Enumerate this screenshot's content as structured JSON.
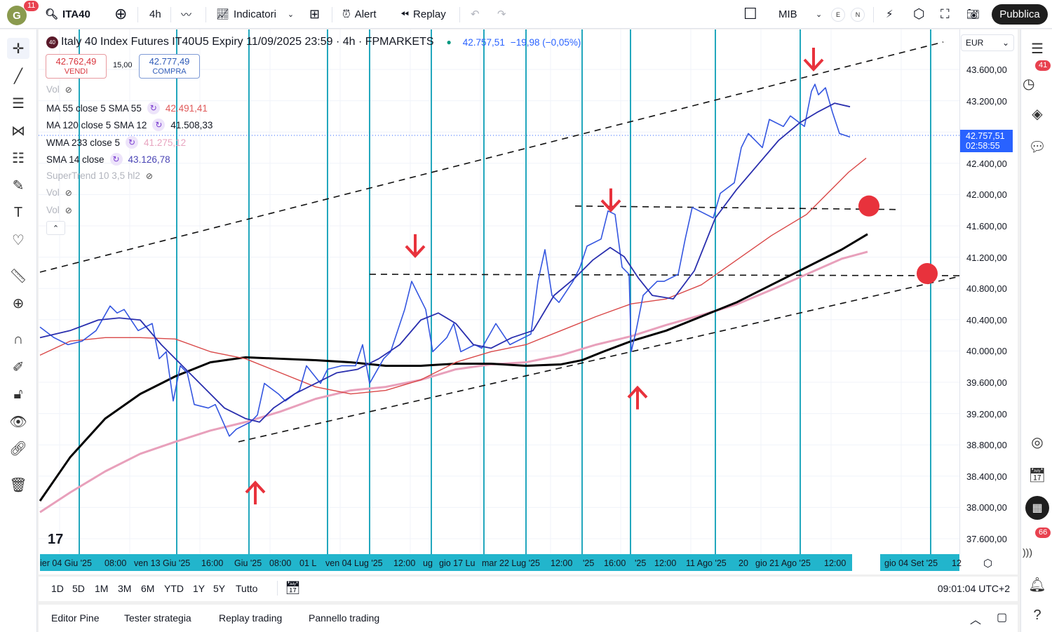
{
  "topbar": {
    "avatar_letter": "G",
    "avatar_badge": "11",
    "symbol": "ITA40",
    "interval": "4h",
    "indicators": "Indicatori",
    "alert": "Alert",
    "replay": "Replay",
    "layout_name": "MIB",
    "e": "E",
    "n": "N",
    "publish": "Pubblica"
  },
  "legend": {
    "symbol_badge": "40",
    "title": "Italy 40 Index Futures IT40U5 Expiry 11/09/2025 23:59 · 4h · FPMARKETS",
    "last": "42.757,51",
    "change": "−19,98 (−0,05%)",
    "sell_price": "42.762,49",
    "sell_label": "VENDI",
    "spread": "15,00",
    "buy_price": "42.777,49",
    "buy_label": "COMPRA",
    "rows": [
      {
        "name": "Vol",
        "value": "",
        "color": "#b2b5be",
        "hidden": true
      },
      {
        "name": "MA 55 close 5 SMA 55",
        "value": "42.491,41",
        "color": "#e05a5a"
      },
      {
        "name": "MA 120 close 5 SMA 12",
        "value": "41.508,33",
        "color": "#131722"
      },
      {
        "name": "WMA 233 close 5",
        "value": "41.275,12",
        "color": "#e8a5c0"
      },
      {
        "name": "SMA 14 close",
        "value": "43.126,78",
        "color": "#3a3fb0"
      },
      {
        "name": "SuperTrend 10 3,5 hl2",
        "value": "",
        "color": "#b2b5be",
        "hidden": true
      },
      {
        "name": "Vol",
        "value": "",
        "color": "#b2b5be",
        "hidden": true
      },
      {
        "name": "Vol",
        "value": "",
        "color": "#b2b5be",
        "hidden": true
      }
    ]
  },
  "price_axis": {
    "currency": "EUR",
    "labels": [
      "43.600,00",
      "43.200,00",
      "42.400,00",
      "42.000,00",
      "41.600,00",
      "41.200,00",
      "40.800,00",
      "40.400,00",
      "40.000,00",
      "39.600,00",
      "39.200,00",
      "38.800,00",
      "38.400,00",
      "38.000,00",
      "37.600,00"
    ],
    "current_price": "42.757,51",
    "countdown": "02:58:55"
  },
  "time_axis": {
    "labels": [
      "ier 04 Giu '25",
      "08:00",
      "ven 13 Giu '25",
      "16:00",
      "Giu '25",
      "08:00",
      "01 L",
      "ven 04 Lug '25",
      "12:00",
      "ug",
      "gio 17 Lu",
      "mar 22 Lug '25",
      "12:00",
      "'25",
      "16:00",
      "'25",
      "12:00",
      "11 Ago '25",
      "20",
      "gio 21 Ago '25",
      "12:00",
      "gio 04 Set '25",
      "12"
    ]
  },
  "range_bar": {
    "ranges": [
      "1D",
      "5D",
      "1M",
      "3M",
      "6M",
      "YTD",
      "1Y",
      "5Y",
      "Tutto"
    ],
    "clock": "09:01:04 UTC+2"
  },
  "bottom_panel": {
    "tabs": [
      "Editor Pine",
      "Tester strategia",
      "Replay trading",
      "Pannello trading"
    ]
  },
  "right_sidebar": {
    "alerts_badge": "41",
    "news_badge": "66"
  },
  "chart_data": {
    "type": "line",
    "x_unit": "bar index (4h)",
    "ylim": [
      37600,
      43600
    ],
    "y_ticks": [
      43600,
      43200,
      42800,
      42400,
      42000,
      41600,
      41200,
      40800,
      40400,
      40000,
      39600,
      39200,
      38800,
      38400,
      38000,
      37600
    ],
    "series": [
      {
        "name": "Price",
        "color": "#3456e0",
        "width": 1.6,
        "points": [
          [
            0,
            40306
          ],
          [
            2,
            40171
          ],
          [
            4,
            40081
          ],
          [
            6,
            40126
          ],
          [
            8,
            40261
          ],
          [
            10,
            40576
          ],
          [
            11,
            40486
          ],
          [
            12,
            40531
          ],
          [
            14,
            40261
          ],
          [
            16,
            40351
          ],
          [
            17,
            39901
          ],
          [
            18,
            39991
          ],
          [
            19,
            39361
          ],
          [
            20,
            39811
          ],
          [
            21,
            39721
          ],
          [
            22,
            39316
          ],
          [
            24,
            39271
          ],
          [
            25,
            39316
          ],
          [
            27,
            38911
          ],
          [
            28,
            39001
          ],
          [
            30,
            39091
          ],
          [
            31,
            39181
          ],
          [
            32,
            39586
          ],
          [
            34,
            39451
          ],
          [
            35,
            39361
          ],
          [
            37,
            39496
          ],
          [
            38,
            39811
          ],
          [
            40,
            39586
          ],
          [
            41,
            39766
          ],
          [
            43,
            39811
          ],
          [
            45,
            39811
          ],
          [
            46,
            40081
          ],
          [
            47,
            39586
          ],
          [
            49,
            39901
          ],
          [
            50,
            39991
          ],
          [
            52,
            40531
          ],
          [
            53,
            40891
          ],
          [
            54,
            40711
          ],
          [
            55,
            40531
          ],
          [
            56,
            39991
          ],
          [
            58,
            40171
          ],
          [
            59,
            40351
          ],
          [
            60,
            39991
          ],
          [
            62,
            40081
          ],
          [
            63,
            40036
          ],
          [
            65,
            40351
          ],
          [
            67,
            40081
          ],
          [
            68,
            40126
          ],
          [
            70,
            40216
          ],
          [
            71,
            40891
          ],
          [
            72,
            41296
          ],
          [
            73,
            40711
          ],
          [
            74,
            40621
          ],
          [
            76,
            40891
          ],
          [
            77,
            41071
          ],
          [
            78,
            41341
          ],
          [
            80,
            41431
          ],
          [
            81,
            41791
          ],
          [
            82,
            41746
          ],
          [
            83,
            41071
          ],
          [
            84,
            40981
          ],
          [
            84.3,
            39991
          ],
          [
            85,
            40261
          ],
          [
            86,
            40711
          ],
          [
            87,
            40801
          ],
          [
            88,
            40891
          ],
          [
            89,
            40891
          ],
          [
            91,
            40981
          ],
          [
            92,
            41431
          ],
          [
            93,
            41836
          ],
          [
            94,
            41791
          ],
          [
            96,
            41701
          ],
          [
            97,
            42016
          ],
          [
            99,
            42151
          ],
          [
            100,
            42601
          ],
          [
            101,
            42781
          ],
          [
            102,
            42691
          ],
          [
            103,
            42601
          ],
          [
            104,
            42961
          ],
          [
            106,
            42871
          ],
          [
            107,
            43006
          ],
          [
            109,
            42871
          ],
          [
            110,
            43321
          ],
          [
            110.5,
            43411
          ],
          [
            111,
            43276
          ],
          [
            112,
            43366
          ],
          [
            113,
            43051
          ],
          [
            114,
            42781
          ],
          [
            115.5,
            42736
          ]
        ]
      },
      {
        "name": "SMA 14",
        "color": "#2a2fae",
        "width": 1.8,
        "points": [
          [
            0,
            40171
          ],
          [
            4.3,
            40261
          ],
          [
            8.3,
            40396
          ],
          [
            11.3,
            40423
          ],
          [
            14.3,
            40396
          ],
          [
            17.3,
            40081
          ],
          [
            20.3,
            39811
          ],
          [
            23.3,
            39541
          ],
          [
            26.3,
            39271
          ],
          [
            29.3,
            39136
          ],
          [
            31.3,
            39091
          ],
          [
            33.3,
            39271
          ],
          [
            36.3,
            39451
          ],
          [
            39.3,
            39586
          ],
          [
            42.3,
            39721
          ],
          [
            45.3,
            39766
          ],
          [
            48.3,
            39901
          ],
          [
            51.3,
            40081
          ],
          [
            54.3,
            40396
          ],
          [
            56.8,
            40486
          ],
          [
            59.3,
            40351
          ],
          [
            61.8,
            40081
          ],
          [
            64.3,
            40036
          ],
          [
            67.3,
            40171
          ],
          [
            70.3,
            40261
          ],
          [
            73.3,
            40711
          ],
          [
            76.3,
            40936
          ],
          [
            78.8,
            41161
          ],
          [
            81.3,
            41323
          ],
          [
            83.3,
            41206
          ],
          [
            85.3,
            40936
          ],
          [
            87.3,
            40711
          ],
          [
            90.3,
            40666
          ],
          [
            93.3,
            41026
          ],
          [
            96.3,
            41701
          ],
          [
            99.3,
            42061
          ],
          [
            102.3,
            42376
          ],
          [
            105.3,
            42691
          ],
          [
            108.3,
            42916
          ],
          [
            110.8,
            43051
          ],
          [
            113.3,
            43168
          ],
          [
            115.5,
            43123
          ]
        ]
      },
      {
        "name": "MA 55",
        "color": "#d94848",
        "width": 1.4,
        "points": [
          [
            0,
            39946
          ],
          [
            4.3,
            40126
          ],
          [
            9.3,
            40171
          ],
          [
            14.3,
            40171
          ],
          [
            19.3,
            40153
          ],
          [
            24.3,
            39991
          ],
          [
            29.3,
            39901
          ],
          [
            34.3,
            39721
          ],
          [
            39.3,
            39541
          ],
          [
            44.3,
            39451
          ],
          [
            49.3,
            39496
          ],
          [
            54.3,
            39631
          ],
          [
            59.3,
            39856
          ],
          [
            64.3,
            39991
          ],
          [
            69.3,
            40081
          ],
          [
            74.3,
            40261
          ],
          [
            79.3,
            40441
          ],
          [
            84.3,
            40603
          ],
          [
            89.3,
            40666
          ],
          [
            94.3,
            40846
          ],
          [
            99.3,
            41161
          ],
          [
            104.3,
            41476
          ],
          [
            109.3,
            41746
          ],
          [
            112.3,
            42016
          ],
          [
            115.3,
            42286
          ],
          [
            117.8,
            42466
          ]
        ]
      },
      {
        "name": "MA 120",
        "color": "#000000",
        "width": 3,
        "points": [
          [
            0,
            38083
          ],
          [
            4.3,
            38641
          ],
          [
            9.3,
            39136
          ],
          [
            14.3,
            39451
          ],
          [
            19.3,
            39676
          ],
          [
            24.3,
            39856
          ],
          [
            29.3,
            39919
          ],
          [
            34.3,
            39901
          ],
          [
            39.3,
            39883
          ],
          [
            44.3,
            39856
          ],
          [
            49.3,
            39811
          ],
          [
            54.3,
            39811
          ],
          [
            59.3,
            39838
          ],
          [
            64.3,
            39838
          ],
          [
            69.3,
            39811
          ],
          [
            74.3,
            39829
          ],
          [
            77.3,
            39883
          ],
          [
            80.3,
            39991
          ],
          [
            84.3,
            40126
          ],
          [
            89.3,
            40261
          ],
          [
            94.3,
            40441
          ],
          [
            99.3,
            40621
          ],
          [
            104.3,
            40846
          ],
          [
            109.3,
            41071
          ],
          [
            114.3,
            41296
          ],
          [
            118,
            41494
          ]
        ]
      },
      {
        "name": "WMA 233",
        "color": "#e8a0bb",
        "width": 3,
        "points": [
          [
            0,
            37939
          ],
          [
            4.3,
            38191
          ],
          [
            9.3,
            38461
          ],
          [
            14.3,
            38686
          ],
          [
            19.3,
            38839
          ],
          [
            24.3,
            38983
          ],
          [
            29.3,
            39091
          ],
          [
            34.3,
            39226
          ],
          [
            39.3,
            39388
          ],
          [
            44.3,
            39496
          ],
          [
            49.3,
            39541
          ],
          [
            54.3,
            39631
          ],
          [
            59.3,
            39766
          ],
          [
            64.3,
            39829
          ],
          [
            69.3,
            39856
          ],
          [
            74.3,
            39946
          ],
          [
            79.3,
            40081
          ],
          [
            84.3,
            40189
          ],
          [
            89.3,
            40333
          ],
          [
            94.3,
            40459
          ],
          [
            99.3,
            40594
          ],
          [
            104.3,
            40783
          ],
          [
            109.3,
            40981
          ],
          [
            114.3,
            41179
          ],
          [
            118,
            41269
          ]
        ]
      }
    ],
    "drawings": {
      "dashed_lines": [
        [
          [
            0,
            41008
          ],
          [
            128.8,
            43951
          ]
        ],
        [
          [
            28.3,
            38839
          ],
          [
            131.1,
            40954
          ]
        ],
        [
          [
            76.3,
            41854
          ],
          [
            122.3,
            41809
          ]
        ],
        [
          [
            47,
            40981
          ],
          [
            131.1,
            40963
          ]
        ]
      ],
      "vertical_lines": [
        5.6,
        19.5,
        29.8,
        41,
        47,
        55.8,
        63.3,
        69.3,
        77.3,
        84.2,
        96.3,
        108.4,
        127
      ],
      "down_arrows": [
        [
          53.5,
          41341
        ],
        [
          81.4,
          41926
        ],
        [
          110.3,
          43726
        ]
      ],
      "up_arrows": [
        [
          30.7,
          38191
        ],
        [
          85.2,
          39406
        ]
      ],
      "circles": [
        [
          118.2,
          41854
        ],
        [
          126.5,
          40990
        ]
      ],
      "last_price": 42757.51
    }
  }
}
